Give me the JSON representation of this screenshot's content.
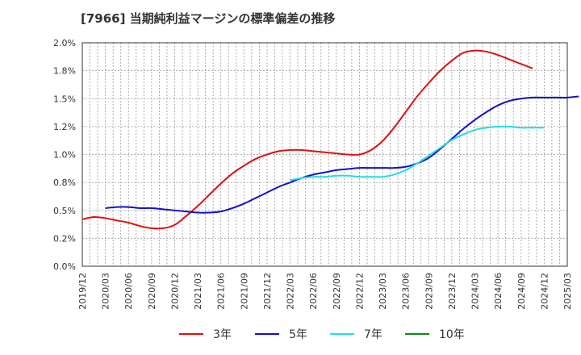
{
  "chart_data": {
    "type": "line",
    "title": "[7966]  当期純利益マージンの標準偏差の推移",
    "xlabel": "",
    "ylabel": "",
    "ylim": [
      0,
      2.0
    ],
    "y_ticks": [
      "0.0%",
      "0.2%",
      "0.5%",
      "0.8%",
      "1.0%",
      "1.2%",
      "1.5%",
      "1.8%",
      "2.0%"
    ],
    "y_tick_values": [
      0,
      0.25,
      0.5,
      0.75,
      1.0,
      1.25,
      1.5,
      1.75,
      2.0
    ],
    "x_ticks": [
      "2019/12",
      "2020/03",
      "2020/06",
      "2020/09",
      "2020/12",
      "2021/03",
      "2021/06",
      "2021/09",
      "2021/12",
      "2022/03",
      "2022/06",
      "2022/09",
      "2022/12",
      "2023/03",
      "2023/06",
      "2023/09",
      "2023/12",
      "2024/03",
      "2024/06",
      "2024/09",
      "2024/12",
      "2025/03"
    ],
    "grid": true,
    "legend_position": "bottom",
    "series": [
      {
        "name": "3年",
        "color": "#dd1111",
        "start_index": 0,
        "values": [
          0.42,
          0.44,
          0.43,
          0.41,
          0.39,
          0.36,
          0.34,
          0.34,
          0.37,
          0.45,
          0.54,
          0.64,
          0.74,
          0.83,
          0.9,
          0.96,
          1.0,
          1.03,
          1.04,
          1.04,
          1.03,
          1.02,
          1.01,
          1.0,
          1.0,
          1.04,
          1.12,
          1.24,
          1.38,
          1.52,
          1.64,
          1.75,
          1.84,
          1.91,
          1.93,
          1.92,
          1.89,
          1.85,
          1.81,
          1.77
        ]
      },
      {
        "name": "5年",
        "color": "#1111cc",
        "start_index": 1,
        "values": [
          0.52,
          0.53,
          0.53,
          0.52,
          0.52,
          0.51,
          0.5,
          0.49,
          0.48,
          0.48,
          0.49,
          0.52,
          0.56,
          0.61,
          0.66,
          0.71,
          0.75,
          0.79,
          0.82,
          0.84,
          0.86,
          0.87,
          0.88,
          0.88,
          0.88,
          0.88,
          0.89,
          0.92,
          0.97,
          1.05,
          1.14,
          1.23,
          1.31,
          1.38,
          1.44,
          1.48,
          1.5,
          1.51,
          1.51,
          1.51,
          1.51,
          1.52
        ]
      },
      {
        "name": "7年",
        "color": "#22dddd",
        "start_index": 9,
        "values": [
          0.77,
          0.79,
          0.8,
          0.8,
          0.81,
          0.81,
          0.8,
          0.8,
          0.8,
          0.82,
          0.86,
          0.92,
          0.99,
          1.06,
          1.13,
          1.18,
          1.22,
          1.24,
          1.25,
          1.25,
          1.24,
          1.24,
          1.24
        ]
      },
      {
        "name": "10年",
        "color": "#118811",
        "start_index": 0,
        "values": []
      }
    ]
  }
}
